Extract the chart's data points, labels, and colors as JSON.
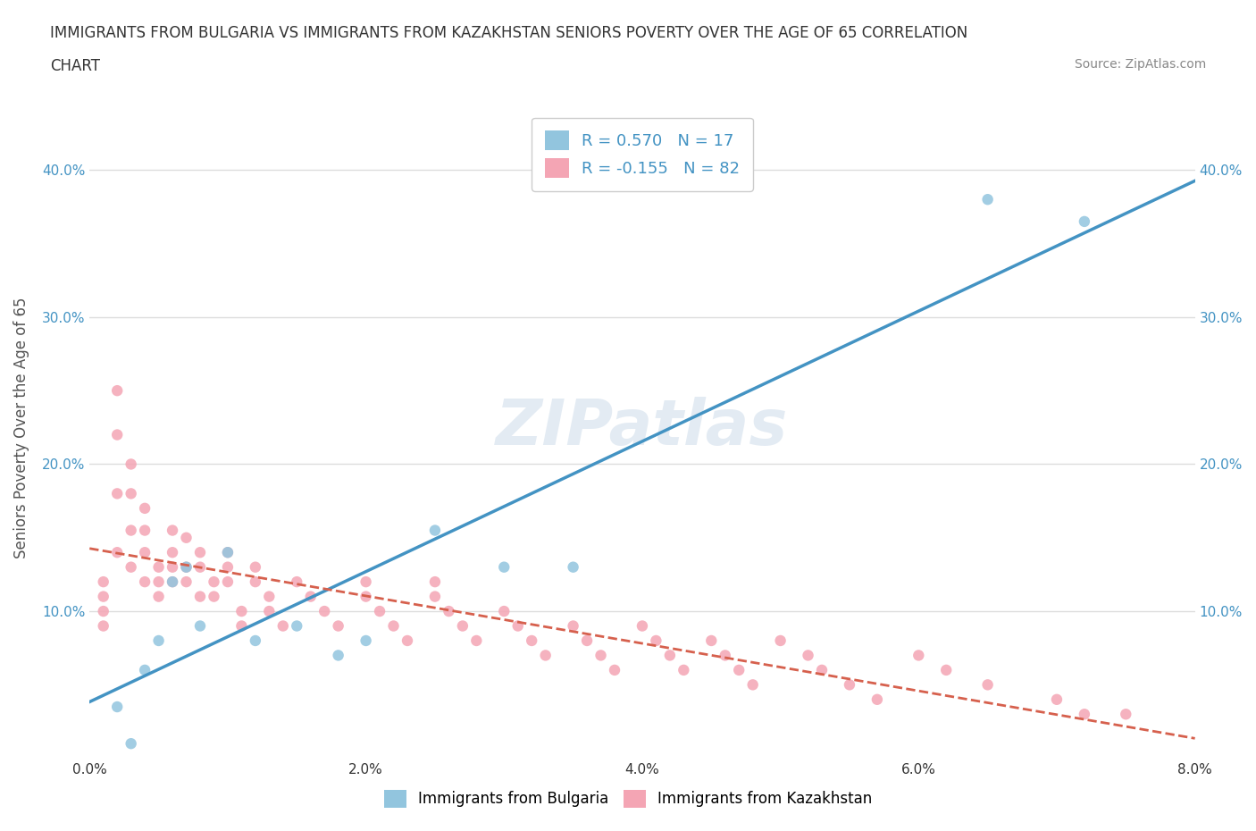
{
  "title_line1": "IMMIGRANTS FROM BULGARIA VS IMMIGRANTS FROM KAZAKHSTAN SENIORS POVERTY OVER THE AGE OF 65 CORRELATION",
  "title_line2": "CHART",
  "source_text": "Source: ZipAtlas.com",
  "ylabel": "Seniors Poverty Over the Age of 65",
  "xlabel_bulgaria": "Immigrants from Bulgaria",
  "xlabel_kazakhstan": "Immigrants from Kazakhstan",
  "x_tick_labels": [
    "0.0%",
    "2.0%",
    "4.0%",
    "6.0%",
    "8.0%"
  ],
  "y_tick_labels": [
    "10.0%",
    "20.0%",
    "30.0%",
    "40.0%"
  ],
  "xlim": [
    0.0,
    0.08
  ],
  "ylim": [
    0.0,
    0.45
  ],
  "R_bulgaria": 0.57,
  "N_bulgaria": 17,
  "R_kazakhstan": -0.155,
  "N_kazakhstan": 82,
  "color_bulgaria": "#92c5de",
  "color_kazakhstan": "#f4a5b4",
  "line_color_bulgaria": "#4393c3",
  "line_color_kazakhstan": "#d6604d",
  "watermark_text": "ZIPatlas",
  "watermark_color": "#c8d8e8",
  "bg_color": "#ffffff",
  "grid_color": "#dddddd",
  "bulgaria_x": [
    0.002,
    0.003,
    0.004,
    0.005,
    0.006,
    0.007,
    0.008,
    0.01,
    0.012,
    0.015,
    0.018,
    0.02,
    0.025,
    0.03,
    0.035,
    0.065,
    0.072
  ],
  "bulgaria_y": [
    0.035,
    0.01,
    0.06,
    0.08,
    0.12,
    0.13,
    0.09,
    0.14,
    0.08,
    0.09,
    0.07,
    0.08,
    0.155,
    0.13,
    0.13,
    0.38,
    0.365
  ],
  "kazakhstan_x": [
    0.001,
    0.001,
    0.001,
    0.001,
    0.002,
    0.002,
    0.002,
    0.002,
    0.003,
    0.003,
    0.003,
    0.003,
    0.004,
    0.004,
    0.004,
    0.004,
    0.005,
    0.005,
    0.005,
    0.006,
    0.006,
    0.006,
    0.006,
    0.007,
    0.007,
    0.007,
    0.008,
    0.008,
    0.008,
    0.009,
    0.009,
    0.01,
    0.01,
    0.01,
    0.011,
    0.011,
    0.012,
    0.012,
    0.013,
    0.013,
    0.014,
    0.015,
    0.016,
    0.017,
    0.018,
    0.02,
    0.02,
    0.021,
    0.022,
    0.023,
    0.025,
    0.025,
    0.026,
    0.027,
    0.028,
    0.03,
    0.031,
    0.032,
    0.033,
    0.035,
    0.036,
    0.037,
    0.038,
    0.04,
    0.041,
    0.042,
    0.043,
    0.045,
    0.046,
    0.047,
    0.048,
    0.05,
    0.052,
    0.053,
    0.055,
    0.057,
    0.06,
    0.062,
    0.065,
    0.07,
    0.072,
    0.075
  ],
  "kazakhstan_y": [
    0.12,
    0.11,
    0.1,
    0.09,
    0.25,
    0.22,
    0.18,
    0.14,
    0.2,
    0.18,
    0.155,
    0.13,
    0.17,
    0.155,
    0.14,
    0.12,
    0.13,
    0.12,
    0.11,
    0.155,
    0.14,
    0.13,
    0.12,
    0.15,
    0.13,
    0.12,
    0.14,
    0.13,
    0.11,
    0.12,
    0.11,
    0.14,
    0.13,
    0.12,
    0.1,
    0.09,
    0.13,
    0.12,
    0.11,
    0.1,
    0.09,
    0.12,
    0.11,
    0.1,
    0.09,
    0.12,
    0.11,
    0.1,
    0.09,
    0.08,
    0.12,
    0.11,
    0.1,
    0.09,
    0.08,
    0.1,
    0.09,
    0.08,
    0.07,
    0.09,
    0.08,
    0.07,
    0.06,
    0.09,
    0.08,
    0.07,
    0.06,
    0.08,
    0.07,
    0.06,
    0.05,
    0.08,
    0.07,
    0.06,
    0.05,
    0.04,
    0.07,
    0.06,
    0.05,
    0.04,
    0.03,
    0.03
  ]
}
